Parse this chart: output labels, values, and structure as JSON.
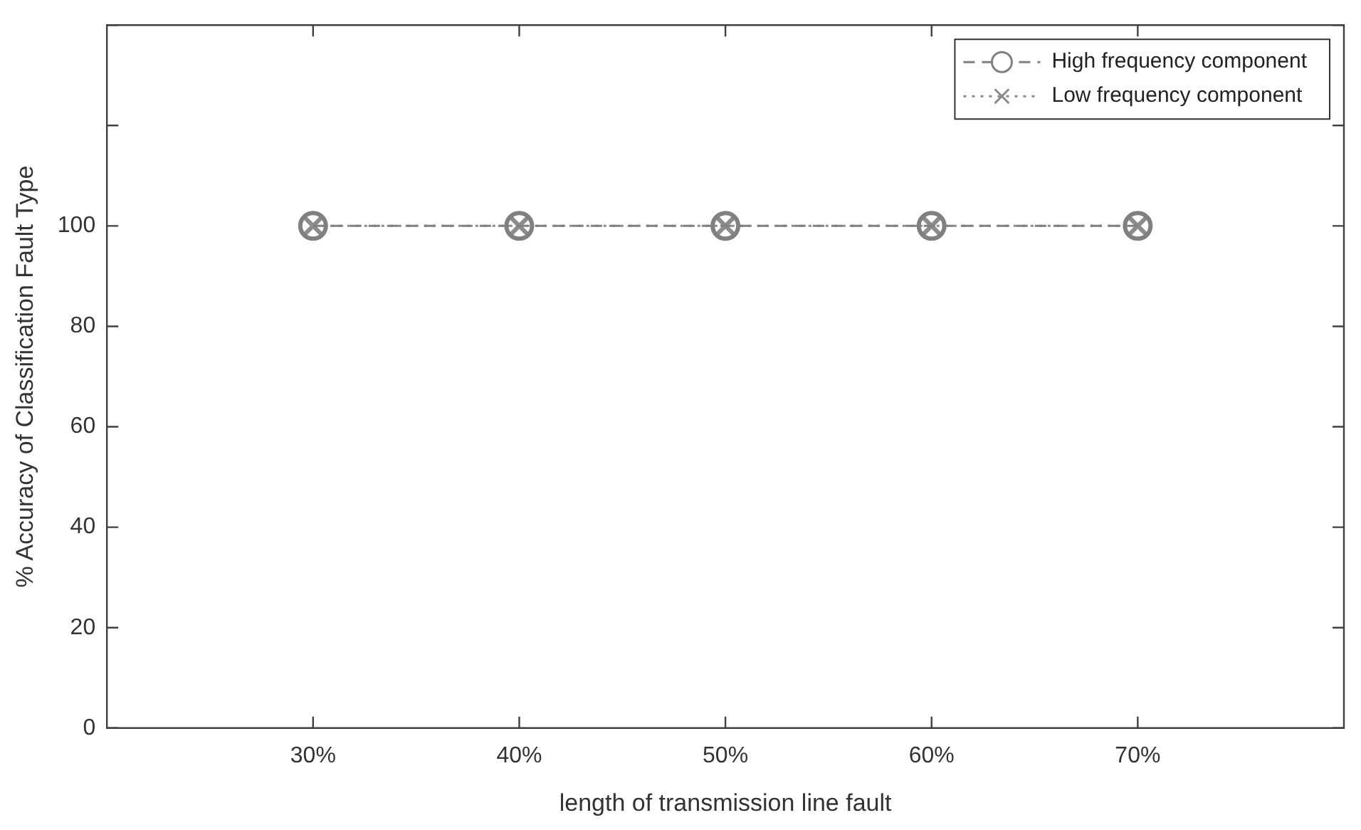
{
  "chart_data": {
    "type": "line",
    "xlabel": "length of transmission line fault",
    "ylabel": "% Accuracy of Classification Fault Type",
    "x": [
      30,
      40,
      50,
      60,
      70
    ],
    "series": [
      {
        "name": "High frequency component",
        "color": "#808080",
        "values": [
          100,
          100,
          100,
          100,
          100
        ],
        "marker": "circle",
        "line_style": "dashed"
      },
      {
        "name": "Low frequency component",
        "color": "#8c8c8c",
        "values": [
          100,
          100,
          100,
          100,
          100
        ],
        "marker": "cross",
        "line_style": "dotted"
      }
    ],
    "xlim": [
      20,
      80
    ],
    "xticks": [
      {
        "value": 30,
        "label": "30%"
      },
      {
        "value": 40,
        "label": "40%"
      },
      {
        "value": 50,
        "label": "50%"
      },
      {
        "value": 60,
        "label": "60%"
      },
      {
        "value": 70,
        "label": "70%"
      }
    ],
    "ylim": [
      0,
      140
    ],
    "yticks": [
      0,
      20,
      40,
      60,
      80,
      100,
      {
        "value": 120,
        "label": null
      },
      {
        "value": 140,
        "label": null
      }
    ],
    "grid": false,
    "legend": "top right"
  }
}
